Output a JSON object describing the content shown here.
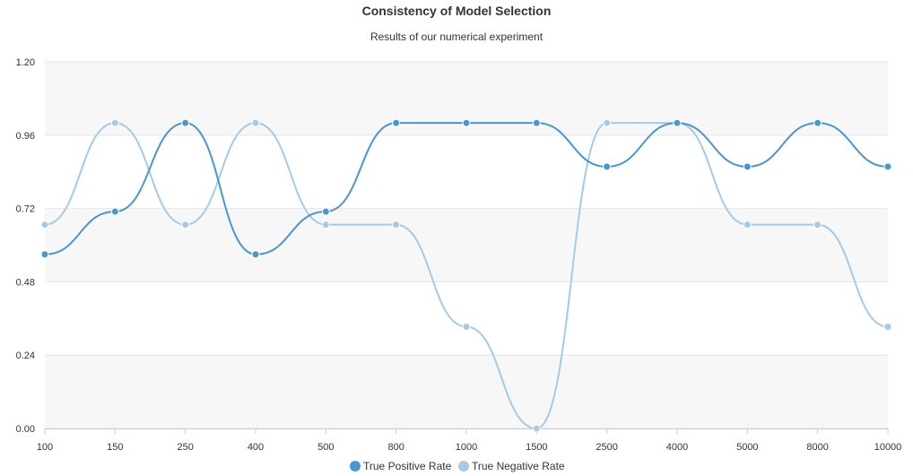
{
  "chart_data": {
    "type": "line",
    "title": "Consistency of Model Selection",
    "subtitle": "Results of our numerical experiment",
    "xlabel": "",
    "ylabel": "",
    "categories": [
      "100",
      "150",
      "250",
      "400",
      "500",
      "800",
      "1000",
      "1500",
      "2500",
      "4000",
      "5000",
      "8000",
      "10000"
    ],
    "ylim": [
      0,
      1.2
    ],
    "yticks": [
      "0.00",
      "0.24",
      "0.48",
      "0.72",
      "0.96",
      "1.20"
    ],
    "grid": true,
    "legend_position": "bottom-center",
    "series": [
      {
        "name": "True Positive Rate",
        "color": "#4a96cf",
        "values": [
          0.57,
          0.71,
          1.0,
          0.57,
          0.71,
          1.0,
          1.0,
          1.0,
          0.857,
          1.0,
          0.857,
          1.0,
          0.857
        ]
      },
      {
        "name": "True Negative Rate",
        "color": "#a3cbe8",
        "values": [
          0.667,
          1.0,
          0.667,
          1.0,
          0.667,
          0.667,
          0.333,
          0.0,
          1.0,
          1.0,
          0.667,
          0.667,
          0.333
        ]
      }
    ]
  }
}
